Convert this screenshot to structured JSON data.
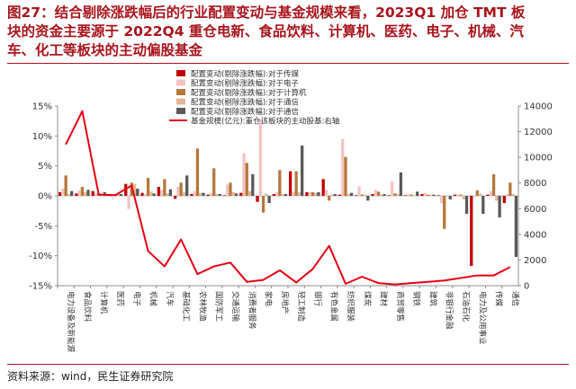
{
  "title_lines": [
    "图27：结合剔除涨跌幅后的行业配置变动与基金规模来看，2023Q1 加仓 TMT 板",
    "块的资金主要源于 2022Q4 重仓电新、食品饮料、计算机、医药、电子、机械、汽",
    "车、化工等板块的主动偏股基金"
  ],
  "source": "资料来源：wind，民生证券研究院",
  "colors": {
    "title": "#a8141c",
    "line": "#e60012"
  },
  "chart_data": {
    "type": "bar",
    "categories": [
      "电力设备及新能源",
      "食品饮料",
      "计算机",
      "医药",
      "电子",
      "机械",
      "汽车",
      "基础化工",
      "农林牧渔",
      "国防军工",
      "交通运输",
      "消费者服务",
      "家电",
      "房地产",
      "轻工制造",
      "银行",
      "有色金属",
      "纺织服装",
      "煤炭",
      "建材",
      "商贸零售",
      "钢铁",
      "建筑",
      "非银行金融",
      "石油石化",
      "电力及公用事业",
      "传媒",
      "通信"
    ],
    "series": [
      {
        "name": "配置变动(剔除涨跌幅):对于传媒",
        "color": "#c00000",
        "values": [
          0.6,
          0.4,
          0.8,
          0.3,
          2.0,
          0.5,
          1.5,
          -0.5,
          0.3,
          0.2,
          0.1,
          0.5,
          -1.0,
          0.3,
          4.1,
          0.6,
          2.8,
          0.2,
          0.1,
          0.3,
          0.1,
          0.1,
          0.3,
          0.1,
          0.2,
          -11.7,
          0.2,
          -1.2
        ]
      },
      {
        "name": "配置变动(剔除涨跌幅):对于电子",
        "color": "#f2c4c4",
        "values": [
          1.2,
          0.9,
          0.5,
          0.2,
          -2.2,
          0.3,
          1.0,
          1.5,
          0.8,
          0.5,
          1.9,
          7.1,
          12.6,
          0.6,
          0.7,
          0.6,
          1.0,
          9.5,
          1.6,
          1.0,
          2.4,
          0.3,
          0.5,
          -1.2,
          0.2,
          -0.2,
          0.8,
          0.3
        ]
      },
      {
        "name": "配置变动(剔除涨跌幅):对于计算机",
        "color": "#b5783c",
        "values": [
          3.4,
          1.5,
          0.4,
          0.2,
          2.2,
          3.0,
          2.8,
          2.2,
          7.9,
          4.6,
          2.2,
          5.5,
          -2.8,
          4.3,
          4.1,
          0.6,
          -0.8,
          6.5,
          0.2,
          0.7,
          0.4,
          0.2,
          0.2,
          -5.5,
          0.2,
          0.9,
          3.6,
          2.2
        ]
      },
      {
        "name": "配置变动(剔除涨跌幅):对于通信",
        "color": "#e3b898",
        "values": [
          0.3,
          0.6,
          0.3,
          0.5,
          2.0,
          0.7,
          0.4,
          0.6,
          0.5,
          0.3,
          0.6,
          0.8,
          0.4,
          0.3,
          0.6,
          0.5,
          0.2,
          0.3,
          0.2,
          0.2,
          0.3,
          0.1,
          0.2,
          0.1,
          -0.6,
          0.4,
          -0.8,
          0.3
        ]
      },
      {
        "name": "配置变动(剔除涨跌幅):对于通信",
        "color": "#595959",
        "values": [
          0.8,
          1.0,
          0.6,
          0.3,
          1.2,
          0.4,
          1.1,
          3.4,
          0.5,
          0.3,
          0.4,
          3.6,
          -1.2,
          0.3,
          8.4,
          0.6,
          0.3,
          0.5,
          -0.8,
          0.3,
          3.9,
          0.7,
          0.2,
          -0.6,
          -3.0,
          -3.0,
          -3.6,
          -10.2
        ]
      },
      {
        "name": "基金规模(亿元):重仓该板块的主动股基:右轴",
        "color": "#e60012",
        "type": "line",
        "axis": "right",
        "values": [
          11000,
          13600,
          7100,
          7050,
          7800,
          2700,
          1500,
          3600,
          900,
          1500,
          1800,
          300,
          450,
          1200,
          250,
          1300,
          3100,
          150,
          700,
          200,
          100,
          200,
          300,
          400,
          600,
          800,
          800,
          1450
        ]
      }
    ],
    "ylim": [
      -15,
      15
    ],
    "y2lim": [
      0,
      14000
    ],
    "yticks": [
      "-15%",
      "-10%",
      "-5%",
      "0%",
      "5%",
      "10%",
      "15%"
    ],
    "y2ticks": [
      "0",
      "2000",
      "4000",
      "6000",
      "8000",
      "10000",
      "12000",
      "14000"
    ],
    "legend_position": "top-center"
  }
}
